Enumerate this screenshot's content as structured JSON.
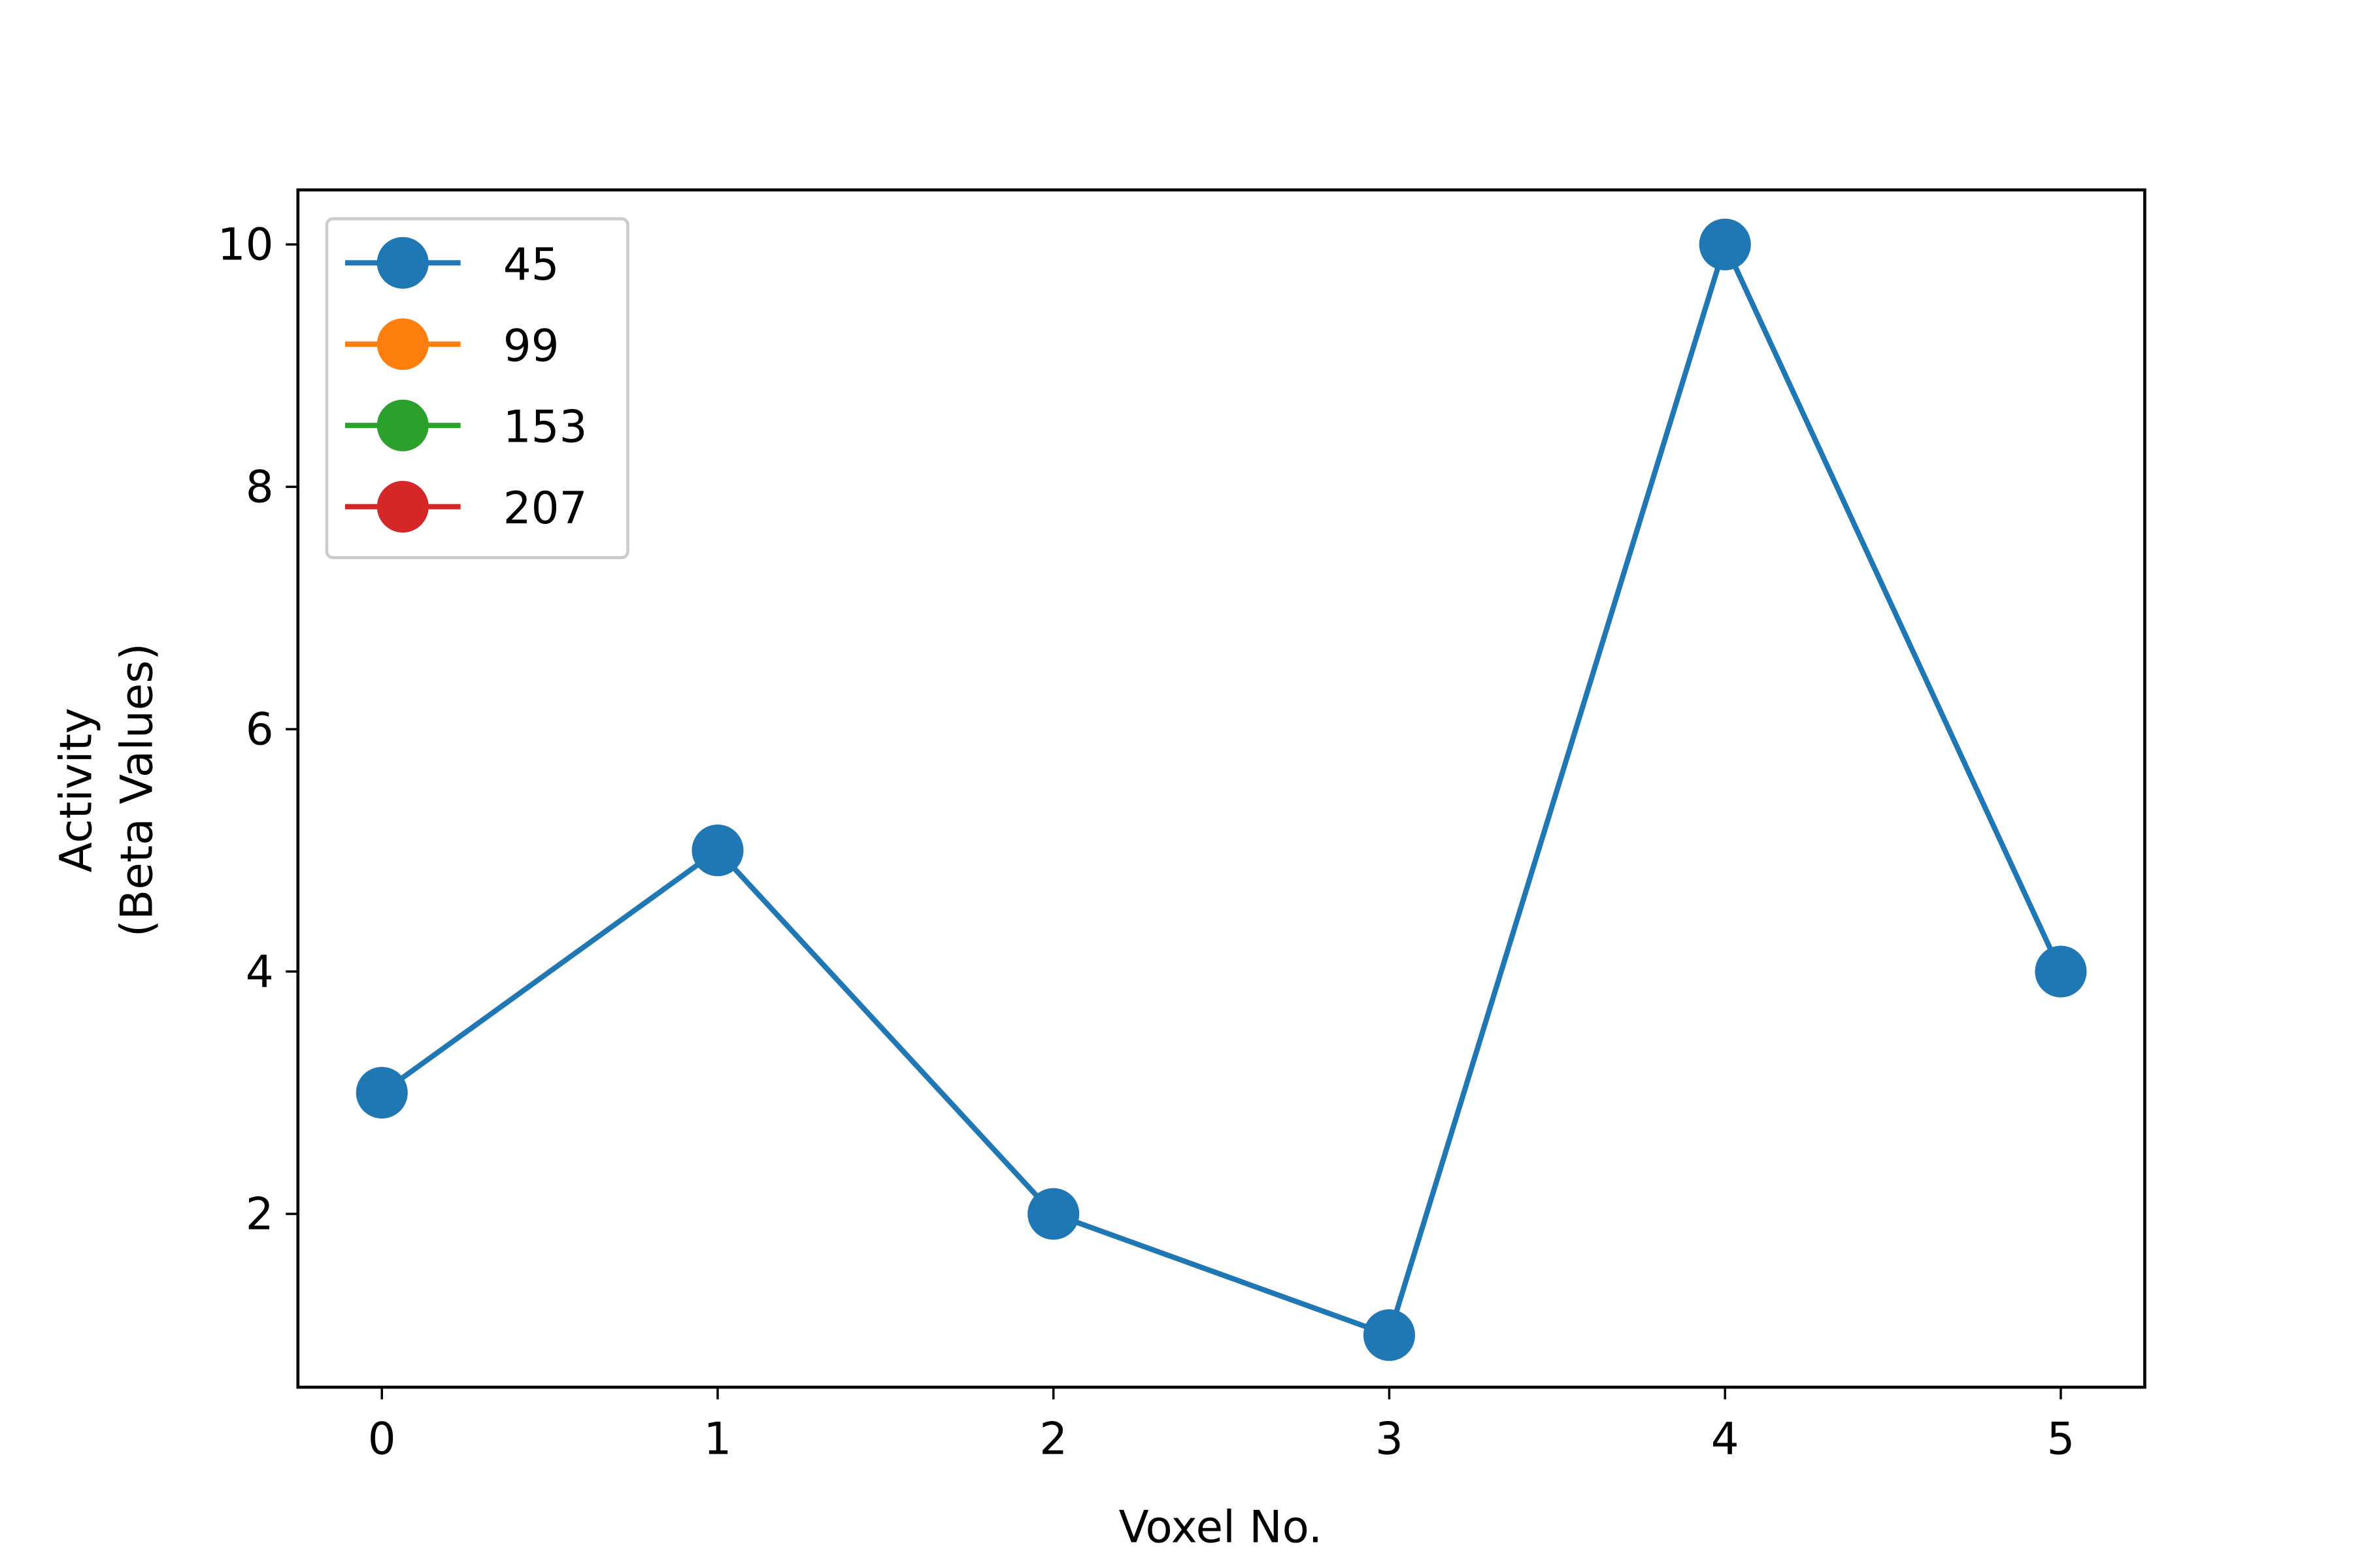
{
  "chart_data": {
    "type": "line",
    "xlabel": "Voxel No.",
    "ylabel": [
      "Activity",
      "(Beta Values)"
    ],
    "x": [
      0,
      1,
      2,
      3,
      4,
      5
    ],
    "series": [
      {
        "name": "45",
        "color": "#1f77b4",
        "values": [
          3,
          5,
          2,
          1,
          10,
          4
        ]
      },
      {
        "name": "99",
        "color": "#ff7f0e",
        "values": [
          null,
          null,
          null,
          null,
          null,
          null
        ]
      },
      {
        "name": "153",
        "color": "#2ca02c",
        "values": [
          null,
          null,
          null,
          null,
          null,
          null
        ]
      },
      {
        "name": "207",
        "color": "#d62728",
        "values": [
          null,
          null,
          null,
          null,
          null,
          null
        ]
      }
    ],
    "xlim": [
      -0.25,
      5.25
    ],
    "xticks": [
      0,
      1,
      2,
      3,
      4,
      5
    ],
    "ylim": [
      0.57,
      10.45
    ],
    "yticks": [
      2,
      4,
      6,
      8,
      10
    ],
    "legend": "upper left",
    "grid": false
  }
}
